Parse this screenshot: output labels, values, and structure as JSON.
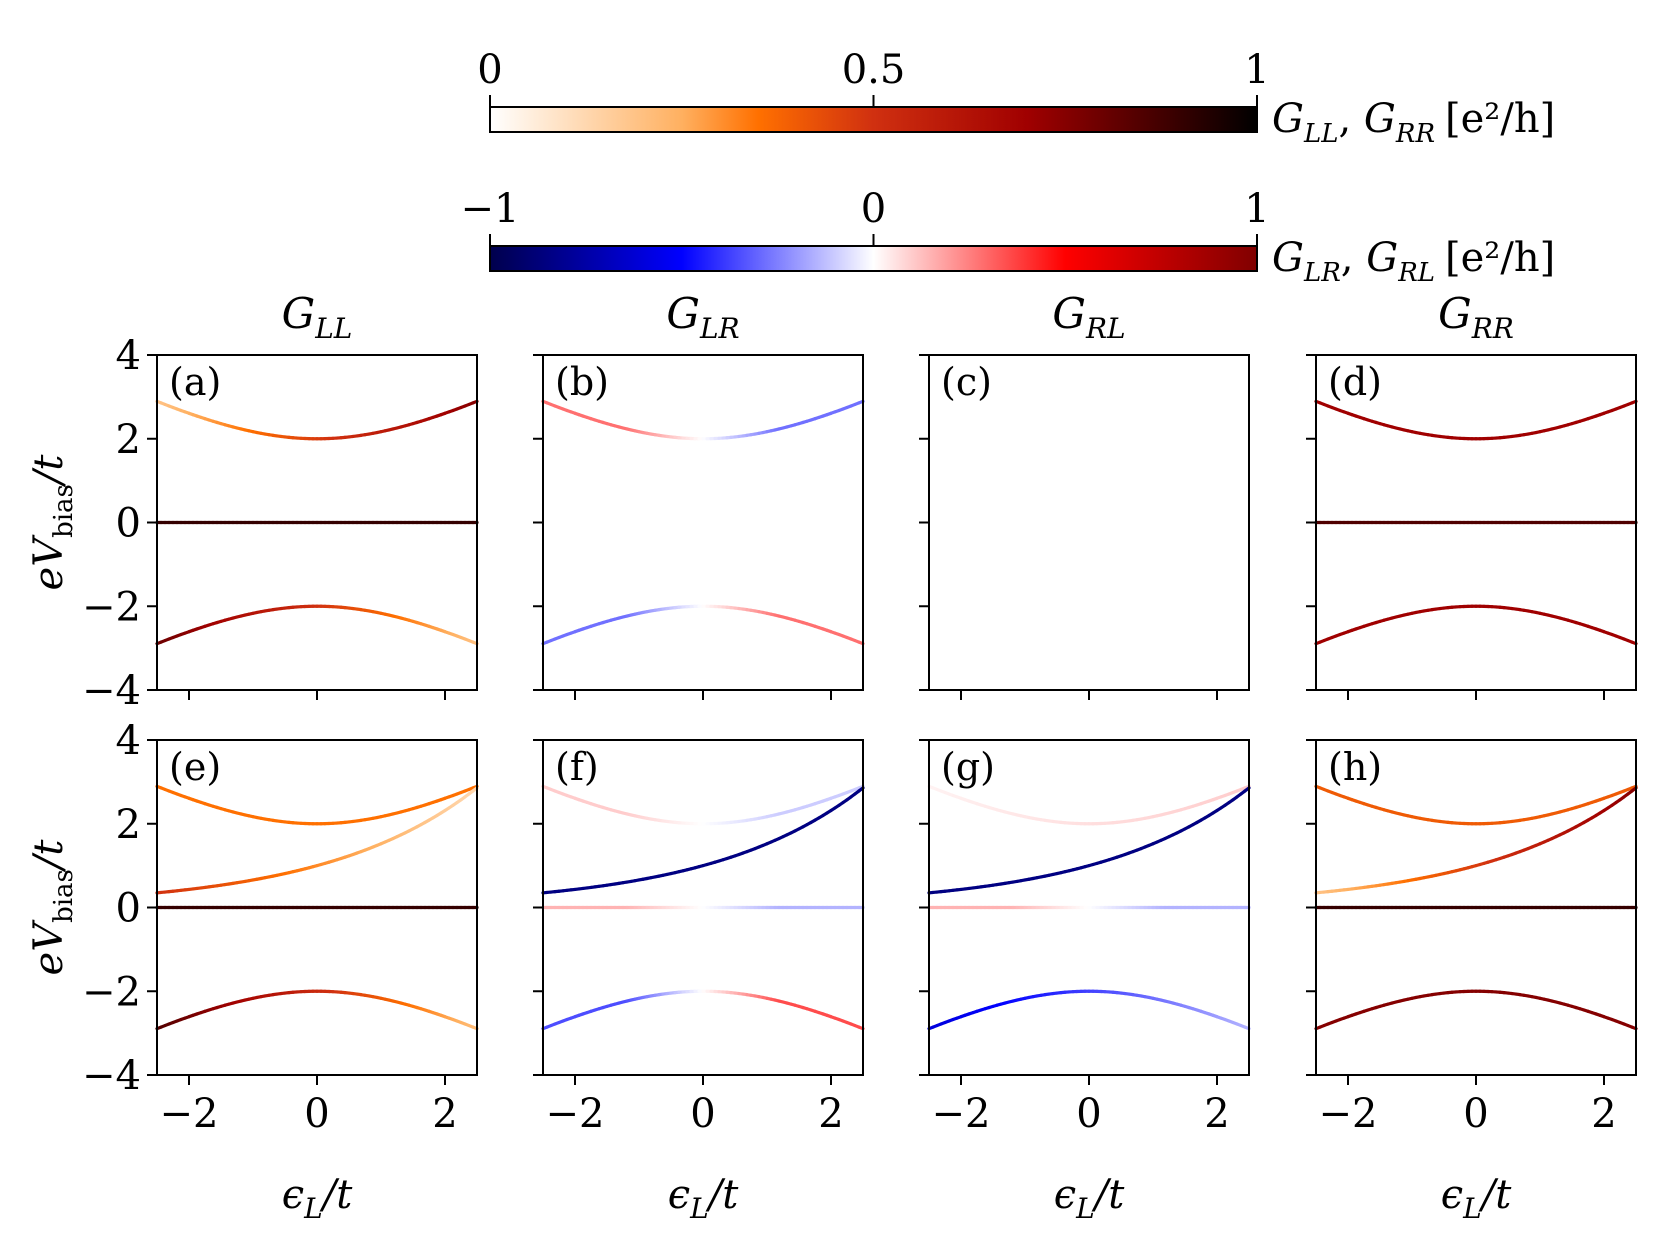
{
  "chart_data": {
    "type": "heatmap",
    "colorbars": [
      {
        "id": "seq",
        "label": "G_LL, G_RR [e²/h]",
        "label_parts": {
          "a": "G",
          "a_sub": "LL",
          "sep": ", ",
          "b": "G",
          "b_sub": "RR",
          "unit": "[e²/h]"
        },
        "range": [
          0,
          1
        ],
        "ticks": [
          0,
          0.5,
          1
        ],
        "tick_labels": [
          "0",
          "0.5",
          "1"
        ],
        "colormap": "gist_heat_r"
      },
      {
        "id": "div",
        "label": "G_LR, G_RL [e²/h]",
        "label_parts": {
          "a": "G",
          "a_sub": "LR",
          "sep": ", ",
          "b": "G",
          "b_sub": "RL",
          "unit": "[e²/h]"
        },
        "range": [
          -1,
          1
        ],
        "ticks": [
          -1,
          0,
          1
        ],
        "tick_labels": [
          "−1",
          "0",
          "1"
        ],
        "colormap": "seismic"
      }
    ],
    "column_titles": [
      {
        "main": "G",
        "sub": "LL"
      },
      {
        "main": "G",
        "sub": "LR"
      },
      {
        "main": "G",
        "sub": "RL"
      },
      {
        "main": "G",
        "sub": "RR"
      }
    ],
    "xlabel": {
      "main": "ϵ",
      "sub": "L",
      "tail": "/t"
    },
    "ylabel": {
      "main": "eV",
      "sub": "bias",
      "tail": "/t"
    },
    "xlim": [
      -2.5,
      2.5
    ],
    "ylim": [
      -4,
      4
    ],
    "xticks": [
      -2,
      0,
      2
    ],
    "xtick_labels": [
      "−2",
      "0",
      "2"
    ],
    "yticks": [
      -4,
      -2,
      0,
      2,
      4
    ],
    "ytick_labels": [
      "−4",
      "−2",
      "0",
      "2",
      "4"
    ],
    "panels": [
      {
        "letter": "(a)",
        "quantity": "G_LL",
        "colormap": "seq",
        "lines": [
          {
            "curve": "upper",
            "peak": 0.75,
            "weight": "right"
          },
          {
            "curve": "zero",
            "peak": 0.9,
            "weight": "flat"
          },
          {
            "curve": "lower",
            "peak": 0.8,
            "weight": "left"
          }
        ]
      },
      {
        "letter": "(b)",
        "quantity": "G_LR",
        "colormap": "div",
        "lines": [
          {
            "curve": "upper",
            "peak": 0.28,
            "weight": "antisym_left_pos"
          },
          {
            "curve": "lower",
            "peak": 0.28,
            "weight": "antisym_left_neg"
          }
        ]
      },
      {
        "letter": "(c)",
        "quantity": "G_RL",
        "colormap": "div",
        "lines": []
      },
      {
        "letter": "(d)",
        "quantity": "G_RR",
        "colormap": "seq",
        "lines": [
          {
            "curve": "upper",
            "peak": 0.7,
            "weight": "flat"
          },
          {
            "curve": "zero",
            "peak": 0.85,
            "weight": "flat"
          },
          {
            "curve": "lower",
            "peak": 0.7,
            "weight": "flat"
          }
        ]
      },
      {
        "letter": "(e)",
        "quantity": "G_LL",
        "colormap": "seq",
        "lines": [
          {
            "curve": "upper",
            "peak": 0.35,
            "weight": "flat"
          },
          {
            "curve": "rising",
            "peak": 0.5,
            "weight": "left"
          },
          {
            "curve": "zero",
            "peak": 0.9,
            "weight": "flat"
          },
          {
            "curve": "lower",
            "peak": 0.85,
            "weight": "left"
          }
        ]
      },
      {
        "letter": "(f)",
        "quantity": "G_LR",
        "colormap": "div",
        "lines": [
          {
            "curve": "upper",
            "peak": 0.1,
            "weight": "antisym_left_pos"
          },
          {
            "curve": "rising",
            "peak": -0.85,
            "weight": "flat"
          },
          {
            "curve": "zero",
            "peak": 0.15,
            "weight": "antisym_left_pos"
          },
          {
            "curve": "lower",
            "peak": 0.35,
            "weight": "antisym_left_neg"
          }
        ]
      },
      {
        "letter": "(g)",
        "quantity": "G_RL",
        "colormap": "div",
        "lines": [
          {
            "curve": "upper",
            "peak": 0.1,
            "weight": "right"
          },
          {
            "curve": "rising",
            "peak": -0.85,
            "weight": "flat"
          },
          {
            "curve": "zero",
            "peak": 0.15,
            "weight": "antisym_left_pos"
          },
          {
            "curve": "lower",
            "peak": -0.6,
            "weight": "left"
          }
        ]
      },
      {
        "letter": "(h)",
        "quantity": "G_RR",
        "colormap": "seq",
        "lines": [
          {
            "curve": "upper",
            "peak": 0.4,
            "weight": "flat"
          },
          {
            "curve": "rising",
            "peak": 0.75,
            "weight": "right"
          },
          {
            "curve": "zero",
            "peak": 0.9,
            "weight": "flat"
          },
          {
            "curve": "lower",
            "peak": 0.75,
            "weight": "flat"
          }
        ]
      }
    ]
  }
}
